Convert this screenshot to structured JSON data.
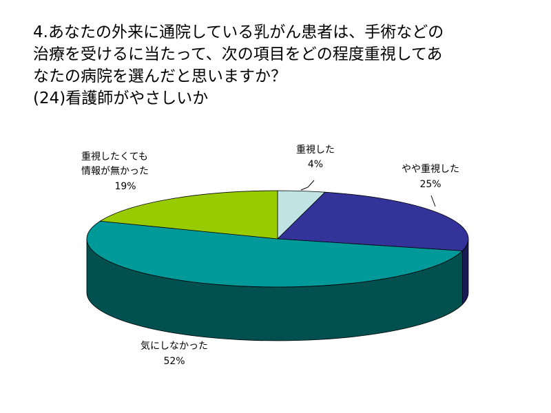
{
  "chart_data": {
    "type": "pie3d",
    "title": [
      "4.あなたの外来に通院している乳がん患者は、手術などの",
      "治療を受けるに当たって、次の項目をどの程度重視してあ",
      "なたの病院を選んだと思いますか？",
      "(24)看護師がやさしいか"
    ],
    "categories": [
      "重視した",
      "やや重視した",
      "気にしなかった",
      "重視したくても\n情報が無かった"
    ],
    "values": [
      4,
      25,
      52,
      19
    ],
    "value_labels": [
      "4%",
      "25%",
      "52%",
      "19%"
    ],
    "colors": [
      "#c0e4e4",
      "#333399",
      "#009999",
      "#99cc00"
    ],
    "side_colors": [
      "#7a9a9a",
      "#1a1a55",
      "#005050",
      "#5c7a00"
    ]
  }
}
